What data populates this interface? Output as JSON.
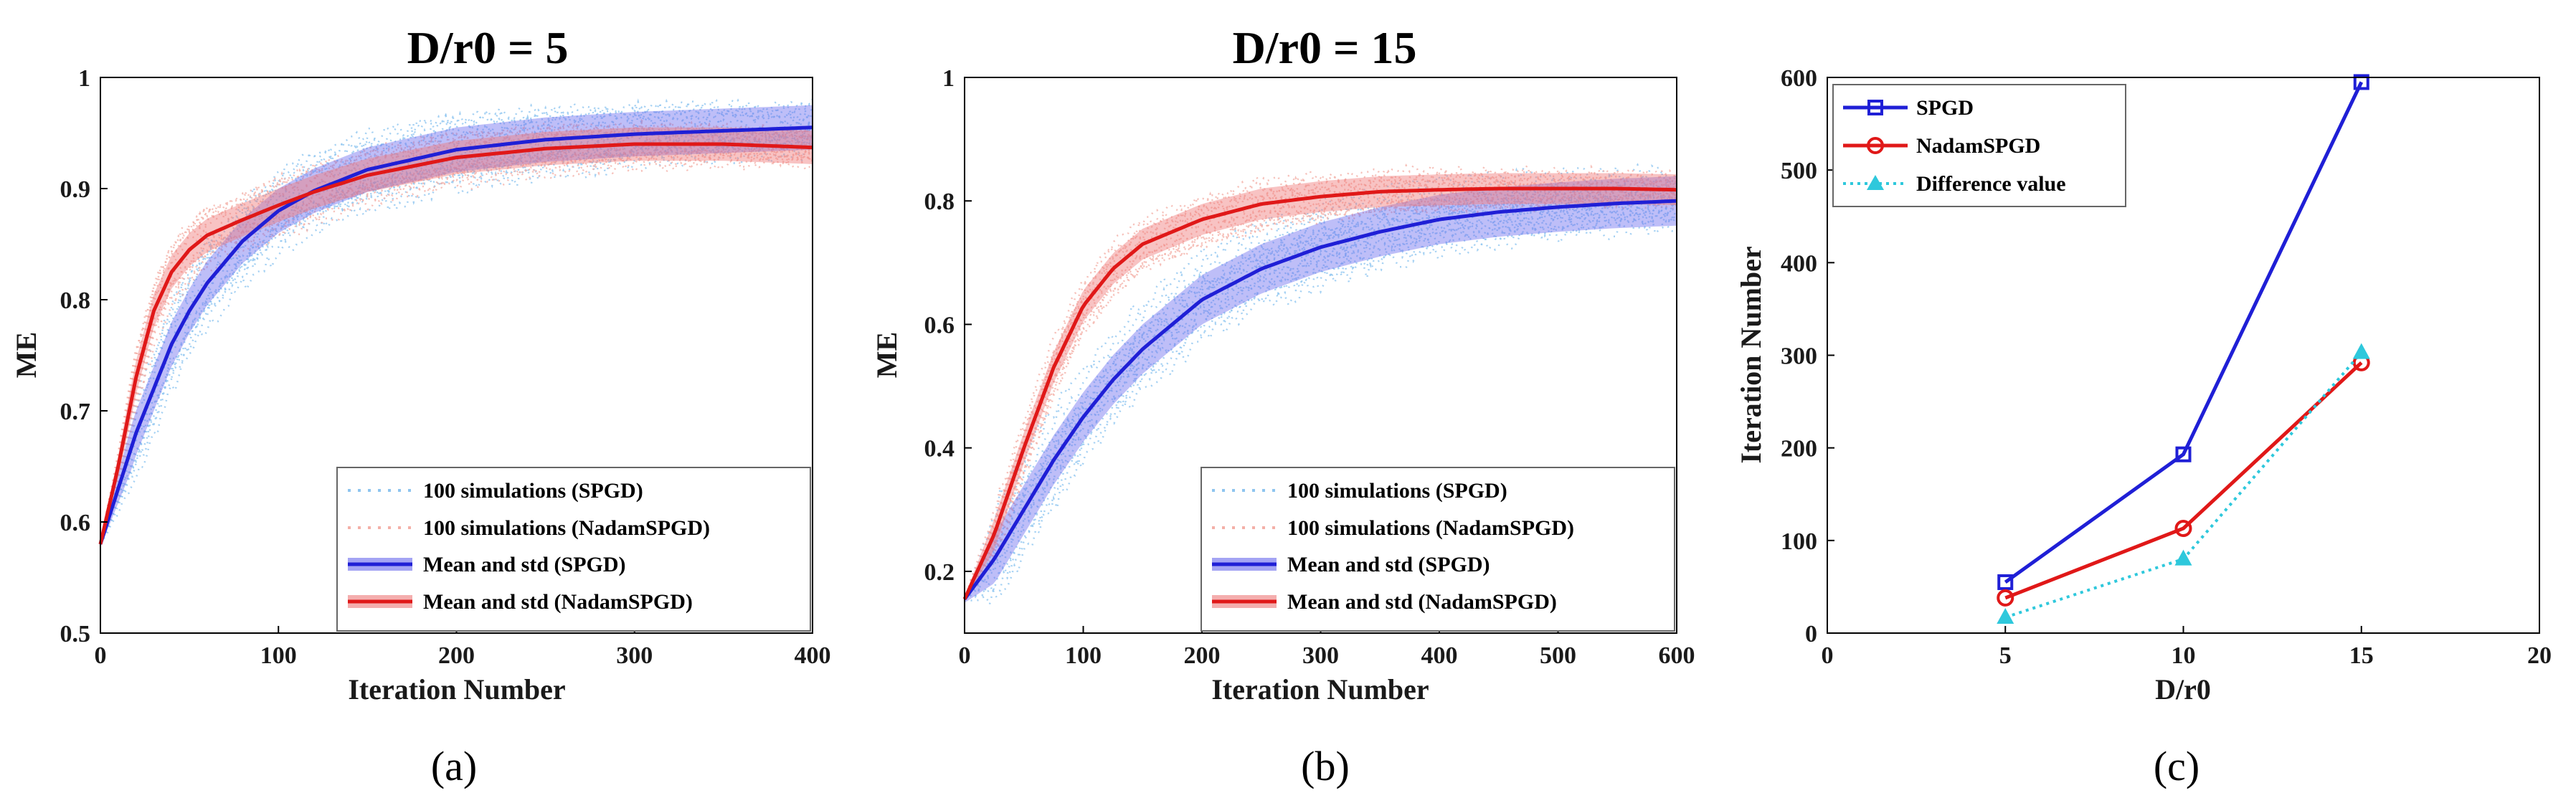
{
  "chart_data": [
    {
      "id": "a",
      "type": "line",
      "title": "D/r0 = 5",
      "sublabel": "(a)",
      "xlabel": "Iteration Number",
      "ylabel": "ME",
      "xlim": [
        0,
        400
      ],
      "ylim": [
        0.5,
        1
      ],
      "xticks": [
        "0",
        "100",
        "200",
        "300",
        "400"
      ],
      "yticks": [
        "0.5",
        "0.6",
        "0.7",
        "0.8",
        "0.9",
        "1"
      ],
      "xtick_values": [
        0,
        100,
        200,
        300,
        400
      ],
      "ytick_values": [
        0.5,
        0.6,
        0.7,
        0.8,
        0.9,
        1.0
      ],
      "series": [
        {
          "name": "Mean and std (SPGD)",
          "color": "#1f1fd6",
          "x": [
            0,
            10,
            20,
            30,
            40,
            50,
            60,
            80,
            100,
            120,
            150,
            200,
            250,
            300,
            350,
            400
          ],
          "y": [
            0.58,
            0.63,
            0.68,
            0.72,
            0.76,
            0.79,
            0.815,
            0.853,
            0.88,
            0.898,
            0.917,
            0.935,
            0.944,
            0.949,
            0.952,
            0.955
          ],
          "std": 0.02
        },
        {
          "name": "Mean and std (NadamSPGD)",
          "color": "#e01818",
          "x": [
            0,
            10,
            20,
            30,
            40,
            50,
            60,
            80,
            100,
            120,
            150,
            200,
            250,
            300,
            350,
            400
          ],
          "y": [
            0.58,
            0.65,
            0.73,
            0.79,
            0.825,
            0.845,
            0.858,
            0.872,
            0.885,
            0.897,
            0.912,
            0.928,
            0.936,
            0.94,
            0.94,
            0.937
          ],
          "std": 0.015
        }
      ],
      "legend": [
        {
          "label": "100 simulations (SPGD)",
          "style": "dotted",
          "color": "#8ec5f0"
        },
        {
          "label": "100 simulations (NadamSPGD)",
          "style": "dotted",
          "color": "#f4b0a8"
        },
        {
          "label": "Mean and std (SPGD)",
          "style": "band",
          "color": "#1f1fd6"
        },
        {
          "label": "Mean and std (NadamSPGD)",
          "style": "band",
          "color": "#e01818"
        }
      ],
      "legend_position": "bottom-right"
    },
    {
      "id": "b",
      "type": "line",
      "title": "D/r0 = 15",
      "sublabel": "(b)",
      "xlabel": "Iteration Number",
      "ylabel": "ME",
      "xlim": [
        0,
        600
      ],
      "ylim": [
        0.1,
        1
      ],
      "xticks": [
        "0",
        "100",
        "200",
        "300",
        "400",
        "500",
        "600"
      ],
      "yticks": [
        "0.2",
        "0.4",
        "0.6",
        "0.8",
        "1"
      ],
      "xtick_values": [
        0,
        100,
        200,
        300,
        400,
        500,
        600
      ],
      "ytick_values": [
        0.2,
        0.4,
        0.6,
        0.8,
        1.0
      ],
      "series": [
        {
          "name": "Mean and std (SPGD)",
          "color": "#1f1fd6",
          "x": [
            0,
            25,
            50,
            75,
            100,
            125,
            150,
            200,
            250,
            300,
            350,
            400,
            450,
            500,
            550,
            600
          ],
          "y": [
            0.155,
            0.22,
            0.3,
            0.38,
            0.45,
            0.51,
            0.56,
            0.64,
            0.69,
            0.725,
            0.75,
            0.77,
            0.782,
            0.79,
            0.796,
            0.8
          ],
          "std": 0.04
        },
        {
          "name": "Mean and std (NadamSPGD)",
          "color": "#e01818",
          "x": [
            0,
            25,
            50,
            75,
            100,
            125,
            150,
            200,
            250,
            300,
            350,
            400,
            450,
            500,
            550,
            600
          ],
          "y": [
            0.155,
            0.26,
            0.4,
            0.53,
            0.63,
            0.69,
            0.73,
            0.77,
            0.795,
            0.807,
            0.815,
            0.818,
            0.82,
            0.82,
            0.82,
            0.818
          ],
          "std": 0.025
        }
      ],
      "legend": [
        {
          "label": "100 simulations (SPGD)",
          "style": "dotted",
          "color": "#8ec5f0"
        },
        {
          "label": "100 simulations (NadamSPGD)",
          "style": "dotted",
          "color": "#f4b0a8"
        },
        {
          "label": "Mean and std (SPGD)",
          "style": "band",
          "color": "#1f1fd6"
        },
        {
          "label": "Mean and std (NadamSPGD)",
          "style": "band",
          "color": "#e01818"
        }
      ],
      "legend_position": "bottom-right"
    },
    {
      "id": "c",
      "type": "line",
      "title": "",
      "sublabel": "(c)",
      "xlabel": "D/r0",
      "ylabel": "Iteration Number",
      "xlim": [
        0,
        20
      ],
      "ylim": [
        0,
        600
      ],
      "xticks": [
        "0",
        "5",
        "10",
        "15",
        "20"
      ],
      "yticks": [
        "0",
        "100",
        "200",
        "300",
        "400",
        "500",
        "600"
      ],
      "xtick_values": [
        0,
        5,
        10,
        15,
        20
      ],
      "ytick_values": [
        0,
        100,
        200,
        300,
        400,
        500,
        600
      ],
      "series": [
        {
          "name": "SPGD",
          "color": "#1f1fd6",
          "marker": "square",
          "style": "solid",
          "x": [
            5,
            10,
            15
          ],
          "y": [
            55,
            193,
            595
          ]
        },
        {
          "name": "NadamSPGD",
          "color": "#e01818",
          "marker": "circle",
          "style": "solid",
          "x": [
            5,
            10,
            15
          ],
          "y": [
            38,
            113,
            292
          ]
        },
        {
          "name": "Difference value",
          "color": "#2ec8dc",
          "marker": "triangle",
          "style": "dotted",
          "x": [
            5,
            10,
            15
          ],
          "y": [
            17,
            80,
            303
          ]
        }
      ],
      "legend_position": "top-left"
    }
  ]
}
